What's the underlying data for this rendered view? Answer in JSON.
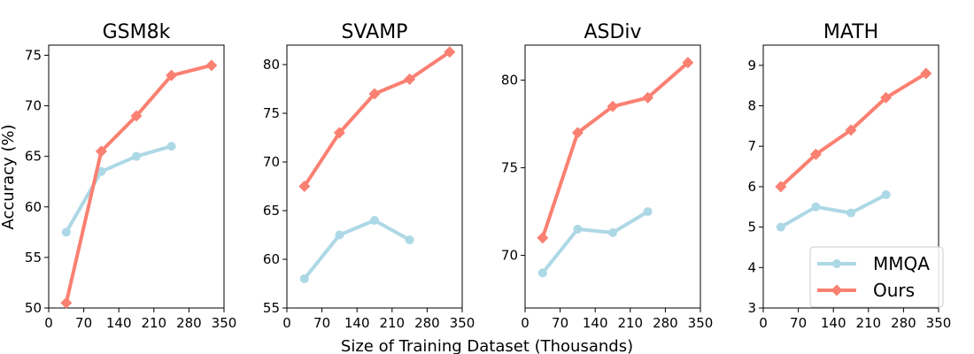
{
  "figure": {
    "xlabel": "Size of Training Dataset (Thousands)",
    "ylabel": "Accuracy (%)"
  },
  "colors": {
    "MMQA": "#add8e6",
    "Ours": "#fa8072"
  },
  "legend": {
    "placement": "lower-right of MATH panel",
    "entries": [
      {
        "name": "MMQA",
        "marker": "circle"
      },
      {
        "name": "Ours",
        "marker": "diamond"
      }
    ]
  },
  "chart_data": [
    {
      "type": "line",
      "title": "GSM8k",
      "xlabel": "",
      "ylabel": "Accuracy (%)",
      "xlim": [
        0,
        350
      ],
      "ylim": [
        50,
        76
      ],
      "xticks": [
        0,
        70,
        140,
        210,
        280,
        350
      ],
      "yticks": [
        50,
        55,
        60,
        65,
        70,
        75
      ],
      "grid": false,
      "series": [
        {
          "name": "MMQA",
          "x": [
            35,
            105,
            175,
            245
          ],
          "y": [
            57.5,
            63.5,
            65.0,
            66.0
          ]
        },
        {
          "name": "Ours",
          "x": [
            35,
            105,
            175,
            245,
            325
          ],
          "y": [
            50.5,
            65.5,
            69.0,
            73.0,
            74.0
          ]
        }
      ]
    },
    {
      "type": "line",
      "title": "SVAMP",
      "xlabel": "",
      "ylabel": "",
      "xlim": [
        0,
        350
      ],
      "ylim": [
        55,
        82
      ],
      "xticks": [
        0,
        70,
        140,
        210,
        280,
        350
      ],
      "yticks": [
        55,
        60,
        65,
        70,
        75,
        80
      ],
      "grid": false,
      "series": [
        {
          "name": "MMQA",
          "x": [
            35,
            105,
            175,
            245
          ],
          "y": [
            58.0,
            62.5,
            64.0,
            62.0
          ]
        },
        {
          "name": "Ours",
          "x": [
            35,
            105,
            175,
            245,
            325
          ],
          "y": [
            67.5,
            73.0,
            77.0,
            78.5,
            81.3
          ]
        }
      ]
    },
    {
      "type": "line",
      "title": "ASDiv",
      "xlabel": "",
      "ylabel": "",
      "xlim": [
        0,
        350
      ],
      "ylim": [
        67,
        82
      ],
      "xticks": [
        0,
        70,
        140,
        210,
        280,
        350
      ],
      "yticks": [
        70,
        75,
        80
      ],
      "grid": false,
      "series": [
        {
          "name": "MMQA",
          "x": [
            35,
            105,
            175,
            245
          ],
          "y": [
            69.0,
            71.5,
            71.3,
            72.5
          ]
        },
        {
          "name": "Ours",
          "x": [
            35,
            105,
            175,
            245,
            325
          ],
          "y": [
            71.0,
            77.0,
            78.5,
            79.0,
            81.0
          ]
        }
      ]
    },
    {
      "type": "line",
      "title": "MATH",
      "xlabel": "",
      "ylabel": "",
      "xlim": [
        0,
        350
      ],
      "ylim": [
        3,
        9.5
      ],
      "xticks": [
        0,
        70,
        140,
        210,
        280,
        350
      ],
      "yticks": [
        3,
        4,
        5,
        6,
        7,
        8,
        9
      ],
      "grid": false,
      "series": [
        {
          "name": "MMQA",
          "x": [
            35,
            105,
            175,
            245
          ],
          "y": [
            5.0,
            5.5,
            5.35,
            5.8
          ]
        },
        {
          "name": "Ours",
          "x": [
            35,
            105,
            175,
            245,
            325
          ],
          "y": [
            6.0,
            6.8,
            7.4,
            8.2,
            8.8
          ]
        }
      ]
    }
  ]
}
